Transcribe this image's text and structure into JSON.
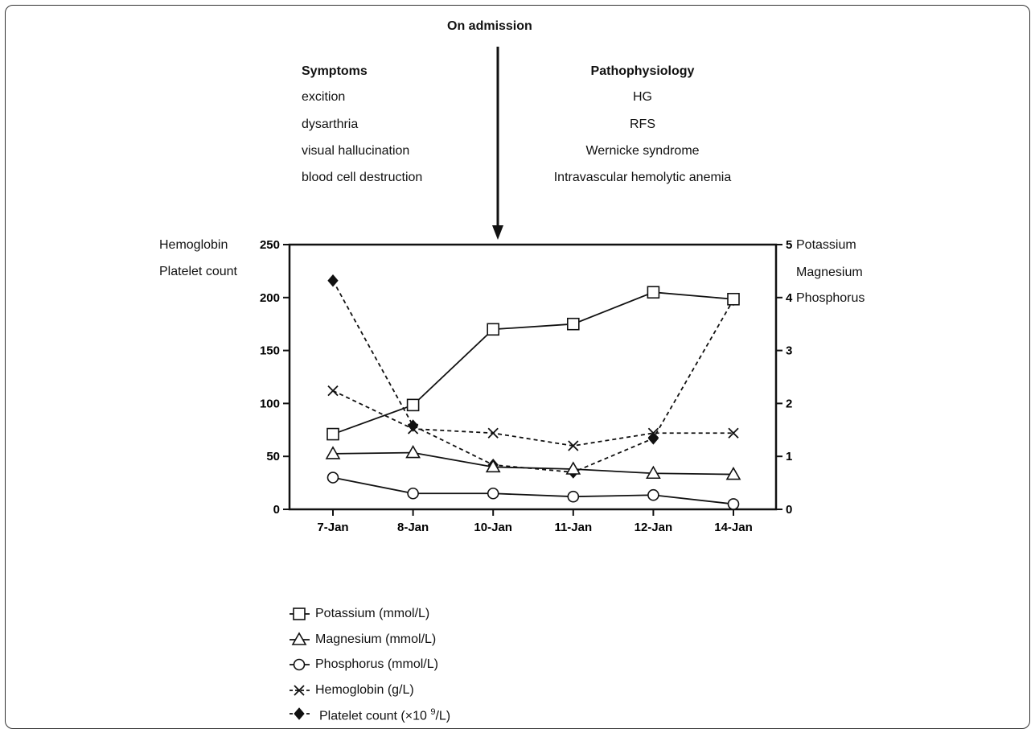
{
  "header": {
    "admission_label": "On admission",
    "symptoms_title": "Symptoms",
    "symptoms": [
      "excition",
      "dysarthria",
      "visual hallucination",
      "blood cell destruction"
    ],
    "pathophysiology_title": "Pathophysiology",
    "pathophysiology": [
      "HG",
      "RFS",
      "Wernicke syndrome",
      "Intravascular hemolytic anemia"
    ]
  },
  "chart_data": {
    "type": "line",
    "categories": [
      "7-Jan",
      "8-Jan",
      "10-Jan",
      "11-Jan",
      "12-Jan",
      "14-Jan"
    ],
    "left_axis": {
      "labels": [
        "Hemoglobin",
        "Platelet count"
      ],
      "ylim": [
        0,
        250
      ],
      "ticks": [
        0,
        50,
        100,
        150,
        200,
        250
      ]
    },
    "right_axis": {
      "labels": [
        "Potassium",
        "Magnesium",
        "Phosphorus"
      ],
      "ylim": [
        0,
        5
      ],
      "ticks": [
        0,
        1,
        2,
        3,
        4,
        5
      ]
    },
    "series": [
      {
        "name": "Potassium (mmol/L)",
        "axis": "right",
        "marker": "square",
        "line": "solid",
        "values": [
          1.42,
          1.97,
          3.4,
          3.5,
          4.1,
          3.97
        ]
      },
      {
        "name": "Magnesium (mmol/L)",
        "axis": "right",
        "marker": "triangle",
        "line": "solid",
        "values": [
          1.05,
          1.07,
          0.8,
          0.76,
          0.68,
          0.66
        ]
      },
      {
        "name": "Phosphorus (mmol/L)",
        "axis": "right",
        "marker": "circle",
        "line": "solid",
        "values": [
          0.6,
          0.3,
          0.3,
          0.24,
          0.27,
          0.1
        ]
      },
      {
        "name": "Hemoglobin (g/L)",
        "axis": "left",
        "marker": "x",
        "line": "dashed",
        "values": [
          112,
          76,
          72,
          60,
          72,
          72
        ]
      },
      {
        "name": "Platelet count (×10 9/L)",
        "axis": "left",
        "marker": "diamond",
        "line": "dashed",
        "values": [
          216,
          79,
          42,
          35,
          67,
          198
        ]
      }
    ],
    "legend_position": "bottom-left"
  },
  "legend": {
    "potassium": "Potassium (mmol/L)",
    "magnesium": "Magnesium (mmol/L)",
    "phosphorus": "Phosphorus (mmol/L)",
    "hemoglobin": "Hemoglobin (g/L)",
    "platelet_prefix": "Platelet count (×10 ",
    "platelet_sup": "9",
    "platelet_suffix": "/L)"
  }
}
